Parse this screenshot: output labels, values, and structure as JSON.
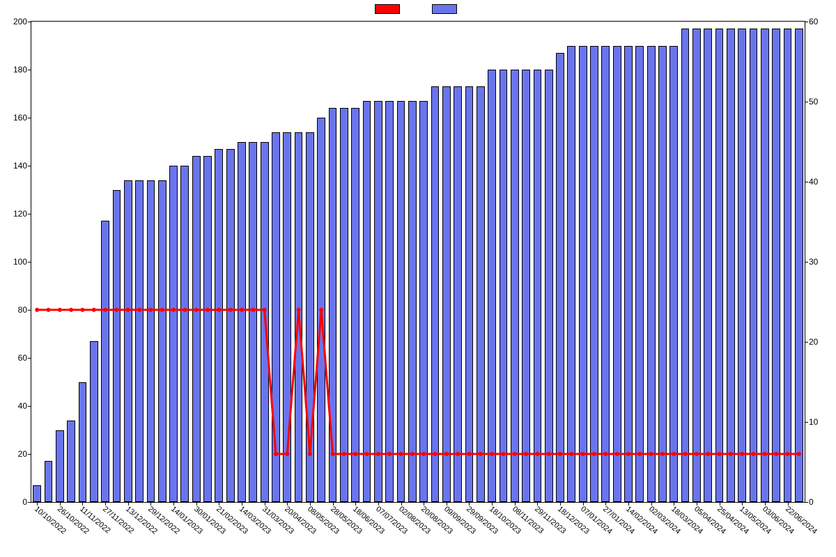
{
  "chart": {
    "type": "bar+line",
    "background_color": "#ffffff",
    "plot_border_color": "#000000",
    "bar_color": "#6a75ed",
    "bar_edge_color": "#000000",
    "line_color": "#ff0000",
    "line_width": 3,
    "marker_color": "#ff0000",
    "marker_radius": 3,
    "bar_width_ratio": 0.72,
    "legend": {
      "items": [
        {
          "label": "",
          "color": "#ff0000",
          "swatch_type": "line"
        },
        {
          "label": "",
          "color": "#6a75ed",
          "swatch_type": "bar"
        }
      ],
      "position": "top-center"
    },
    "axis_left": {
      "min": 0,
      "max": 200,
      "step": 20,
      "ticks": [
        0,
        20,
        40,
        60,
        80,
        100,
        120,
        140,
        160,
        180,
        200
      ],
      "fontsize": 12
    },
    "axis_right": {
      "min": 0,
      "max": 60,
      "step": 10,
      "ticks": [
        0,
        10,
        20,
        30,
        40,
        50,
        60
      ],
      "fontsize": 12
    },
    "axis_x": {
      "labels": [
        "10/10/2022",
        "26/10/2022",
        "11/11/2022",
        "27/11/2022",
        "13/12/2022",
        "29/12/2022",
        "14/01/2023",
        "30/01/2023",
        "21/02/2023",
        "14/03/2023",
        "31/03/2023",
        "20/04/2023",
        "08/05/2023",
        "28/05/2023",
        "18/06/2023",
        "07/07/2023",
        "02/08/2023",
        "20/08/2023",
        "09/09/2023",
        "29/09/2023",
        "18/10/2023",
        "08/11/2023",
        "29/11/2023",
        "18/12/2023",
        "07/01/2024",
        "27/01/2024",
        "14/02/2024",
        "02/03/2024",
        "18/03/2024",
        "05/04/2024",
        "25/04/2024",
        "13/05/2024",
        "03/06/2024",
        "22/06/2024"
      ],
      "label_rotation_deg": 40,
      "fontsize": 11,
      "label_every": 2
    },
    "categories_count": 68,
    "bar_values": [
      7,
      17,
      30,
      34,
      50,
      67,
      117,
      130,
      134,
      134,
      134,
      134,
      140,
      140,
      144,
      144,
      147,
      147,
      150,
      150,
      150,
      154,
      154,
      154,
      154,
      160,
      164,
      164,
      164,
      167,
      167,
      167,
      167,
      167,
      167,
      173,
      173,
      173,
      173,
      173,
      180,
      180,
      180,
      180,
      180,
      180,
      187,
      190,
      190,
      190,
      190,
      190,
      190,
      190,
      190,
      190,
      190,
      197,
      197,
      197,
      197,
      197,
      197,
      197,
      197,
      197,
      197,
      197
    ],
    "line_values": [
      80,
      80,
      80,
      80,
      80,
      80,
      80,
      80,
      80,
      80,
      80,
      80,
      80,
      80,
      80,
      80,
      80,
      80,
      80,
      80,
      80,
      20,
      20,
      80,
      20,
      80,
      20,
      20,
      20,
      20,
      20,
      20,
      20,
      20,
      20,
      20,
      20,
      20,
      20,
      20,
      20,
      20,
      20,
      20,
      20,
      20,
      20,
      20,
      20,
      20,
      20,
      20,
      20,
      20,
      20,
      20,
      20,
      20,
      20,
      20,
      20,
      20,
      20,
      20,
      20,
      20,
      20,
      20
    ]
  }
}
